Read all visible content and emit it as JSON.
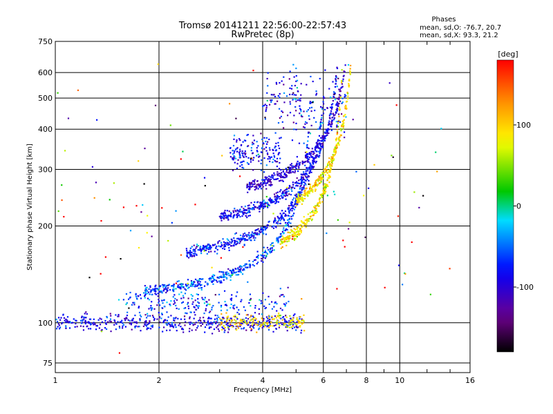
{
  "chart_data": {
    "type": "scatter",
    "title_line1": "Tromsø 20141211 22:56:00-22:57:43",
    "title_line2": "RwPretec (8p)",
    "xlabel": "Frequency [MHz]",
    "ylabel": "Stationary phase Virtual Height [km]",
    "x_scale": "log",
    "y_scale": "log",
    "xlim": [
      1,
      16
    ],
    "ylim": [
      70,
      750
    ],
    "x_ticks": [
      1,
      2,
      4,
      6,
      8,
      10,
      16
    ],
    "y_ticks": [
      75,
      100,
      200,
      300,
      400,
      500,
      600,
      750
    ],
    "grid": true,
    "phases_box": {
      "heading": "Phases",
      "line_o": "mean, sd,O: -76.7, 20.7",
      "line_x": "mean, sd,X:  93.3, 21.2"
    },
    "colorbar": {
      "label": "[deg]",
      "range": [
        -180,
        180
      ],
      "ticks": [
        -100,
        0,
        100
      ],
      "colormap": "rainbow"
    },
    "traces": [
      {
        "name": "",
        "f_min": 1.0,
        "f_max": 5.2,
        "h": 100,
        "h_spread": 0.03,
        "phase": -90,
        "phase_spread": 25,
        "count": 480,
        "shape": "flat"
      },
      {
        "name": "",
        "f_min": 3.0,
        "f_max": 5.3,
        "h": 101,
        "h_spread": 0.03,
        "phase": 95,
        "phase_spread": 25,
        "count": 150,
        "shape": "flat"
      },
      {
        "name": "",
        "f_min": 1.6,
        "f_max": 4.8,
        "h": 115,
        "h_spread": 0.05,
        "phase": -70,
        "phase_spread": 30,
        "count": 220,
        "shape": "flat"
      },
      {
        "name": "",
        "fc": 5.6,
        "h0": 120,
        "f_min": 1.8,
        "f_max": 5.5,
        "phase": -60,
        "phase_spread": 30,
        "count": 420,
        "shape": "cusp"
      },
      {
        "name": "",
        "fc": 6.2,
        "h0": 155,
        "f_min": 2.4,
        "f_max": 6.1,
        "phase": -75,
        "phase_spread": 25,
        "count": 430,
        "shape": "cusp"
      },
      {
        "name": "",
        "fc": 6.8,
        "h0": 195,
        "f_min": 3.0,
        "f_max": 6.7,
        "phase": -85,
        "phase_spread": 25,
        "count": 400,
        "shape": "cusp"
      },
      {
        "name": "",
        "fc": 7.3,
        "h0": 235,
        "f_min": 3.6,
        "f_max": 7.2,
        "phase": -100,
        "phase_spread": 20,
        "count": 340,
        "shape": "cusp"
      },
      {
        "name": "",
        "fc": 6.9,
        "h0": 140,
        "f_min": 4.5,
        "f_max": 6.8,
        "phase": 90,
        "phase_spread": 25,
        "count": 260,
        "shape": "cusp"
      },
      {
        "name": "",
        "fc": 7.4,
        "h0": 185,
        "f_min": 5.0,
        "f_max": 7.3,
        "phase": 95,
        "phase_spread": 25,
        "count": 280,
        "shape": "cusp"
      },
      {
        "name": "",
        "f_min": 3.2,
        "f_max": 4.5,
        "h": 340,
        "h_spread": 0.06,
        "phase": -80,
        "phase_spread": 25,
        "count": 160,
        "shape": "flat"
      },
      {
        "name": "",
        "f_min": 4.0,
        "f_max": 7.0,
        "h": 480,
        "h_spread": 0.12,
        "phase": -90,
        "phase_spread": 35,
        "count": 180,
        "shape": "flat"
      },
      {
        "name": "",
        "f_min": 1.0,
        "f_max": 14.0,
        "h": 250,
        "h_spread": 0.5,
        "phase": 0,
        "phase_spread": 150,
        "count": 120,
        "shape": "flat"
      }
    ]
  }
}
